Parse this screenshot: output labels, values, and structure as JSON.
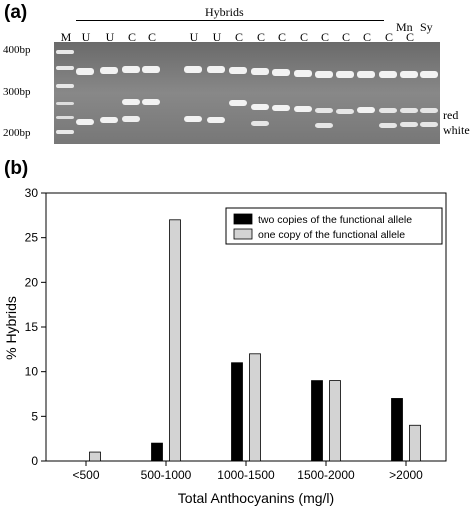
{
  "panel_a": {
    "label": "(a)",
    "group_label": "Hybrids",
    "lanes": [
      "M",
      "U",
      "U",
      "C",
      "C",
      "",
      "U",
      "U",
      "C",
      "C",
      "C",
      "C",
      "C",
      "C",
      "C",
      "C",
      "C"
    ],
    "parents": [
      "Mn",
      "Sy"
    ],
    "size_markers": [
      "400bp",
      "300bp",
      "200bp"
    ],
    "allele_labels": [
      "red",
      "white"
    ]
  },
  "panel_b": {
    "label": "(b)"
  },
  "chart_data": {
    "type": "bar",
    "categories": [
      "<500",
      "500-1000",
      "1000-1500",
      "1500-2000",
      ">2000"
    ],
    "series": [
      {
        "name": "two copies of the functional allele",
        "values": [
          0,
          2,
          11,
          9,
          7
        ],
        "color": "#000000"
      },
      {
        "name": "one copy of the functional allele",
        "values": [
          1,
          27,
          12,
          9,
          4
        ],
        "color": "#d3d3d3"
      }
    ],
    "xlabel": "Total Anthocyanins (mg/l)",
    "ylabel": "% Hybrids",
    "ylim": [
      0,
      30
    ],
    "yticks": [
      0,
      5,
      10,
      15,
      20,
      25,
      30
    ],
    "grid": false,
    "legend_position": "top-right"
  }
}
